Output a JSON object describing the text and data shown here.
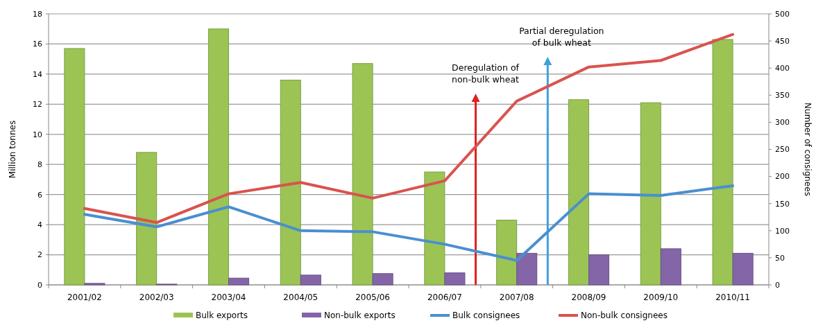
{
  "chart_data": {
    "type": "bar",
    "categories": [
      "2001/02",
      "2002/03",
      "2003/04",
      "2004/05",
      "2005/06",
      "2006/07",
      "2007/08",
      "2008/09",
      "2009/10",
      "2010/11"
    ],
    "series": [
      {
        "name": "Bulk exports",
        "color": "#9bc454",
        "values": [
          15.7,
          8.8,
          17.0,
          13.6,
          14.7,
          7.5,
          4.3,
          12.3,
          12.1,
          16.3
        ]
      },
      {
        "name": "Non-bulk exports",
        "color": "#8465a8",
        "values": [
          0.1,
          0.05,
          0.45,
          0.65,
          0.75,
          0.8,
          2.1,
          2.0,
          2.4,
          2.1
        ]
      },
      {
        "name": "Bulk consignees",
        "type": "line",
        "axis": "y2",
        "color": "#4a8fd0",
        "values": [
          130,
          107,
          144,
          100,
          98,
          75,
          45,
          168,
          165,
          183
        ]
      },
      {
        "name": "Non-bulk consignees",
        "type": "line",
        "axis": "y2",
        "color": "#d9534f",
        "values": [
          141,
          115,
          168,
          189,
          160,
          192,
          339,
          402,
          414,
          462
        ]
      }
    ],
    "ylabel": "Million tonnes",
    "y2label": "Number of consignees",
    "ylim": [
      0,
      18
    ],
    "yticks": [
      0,
      2,
      4,
      6,
      8,
      10,
      12,
      14,
      16,
      18
    ],
    "y2lim": [
      0,
      500
    ],
    "y2ticks": [
      0,
      50,
      100,
      150,
      200,
      250,
      300,
      350,
      400,
      450,
      500
    ],
    "grid": "y",
    "legend": "bottom",
    "marker": "none",
    "line_style": "solid",
    "annotations": [
      "Deregulation of\nnon-bulk wheat",
      "Partial deregulation\nof bulk wheat"
    ]
  }
}
